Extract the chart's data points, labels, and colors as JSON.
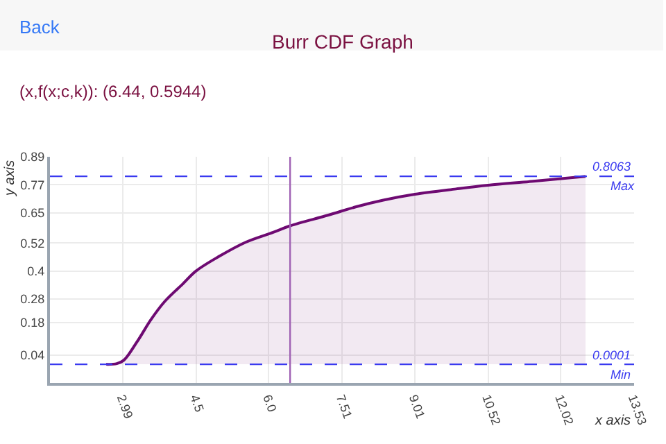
{
  "chart_data": {
    "type": "area",
    "title": "Burr CDF Graph",
    "xlabel": "x axis",
    "ylabel": "y axis",
    "annotations": [
      "Back",
      "(x,f(x;c,k)): (6.44, 0.5944)"
    ],
    "x": [
      2.65,
      2.87,
      3.01,
      3.29,
      3.57,
      3.85,
      4.23,
      4.5,
      4.97,
      5.53,
      6.09,
      6.44,
      7.23,
      7.79,
      8.36,
      9.01,
      9.86,
      10.52,
      11.45,
      12.53
    ],
    "series": [
      {
        "color": "#6e0a72",
        "values": [
          0.0,
          0.003,
          0.017,
          0.098,
          0.191,
          0.268,
          0.345,
          0.4,
          0.462,
          0.524,
          0.566,
          0.594,
          0.64,
          0.675,
          0.704,
          0.729,
          0.752,
          0.768,
          0.785,
          0.806
        ]
      }
    ],
    "xlim": [
      1.49,
      13.53
    ],
    "xticks": [
      2.99,
      4.5,
      {
        "value": 6.0,
        "label": "6.0"
      },
      7.51,
      9.01,
      10.52,
      12.02,
      13.53
    ],
    "ylim": [
      -0.08,
      0.89
    ],
    "yticks": [
      0.04,
      0.18,
      0.28,
      0.4,
      0.52,
      0.65,
      0.77,
      0.89
    ],
    "ref_lines": [
      {
        "axis": "y",
        "value": 0.8063,
        "label": "0.8063\nMax",
        "color": "#3a3af0",
        "line_style": "dashed"
      },
      {
        "axis": "y",
        "value": 0.0001,
        "label": "0.0001\nMin",
        "color": "#3a3af0",
        "line_style": "dashed"
      },
      {
        "axis": "x",
        "value": 6.44,
        "color": "#a062b4",
        "line_style": "solid"
      }
    ],
    "grid": true,
    "marker": "none",
    "line_style": "solid"
  }
}
